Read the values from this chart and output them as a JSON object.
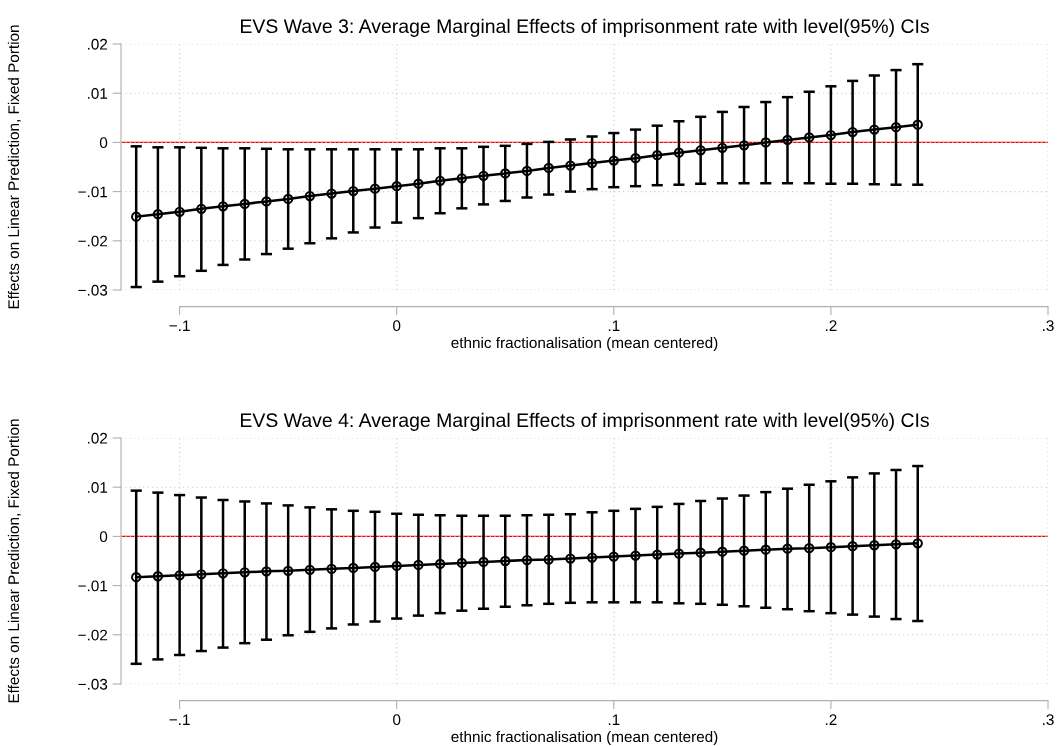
{
  "chart_data": [
    {
      "type": "line",
      "title": "EVS Wave 3: Average Marginal Effects of imprisonment rate with level(95%) CIs",
      "xlabel": "ethnic fractionalisation (mean centered)",
      "ylabel": "Effects on Linear Prediction, Fixed Portion",
      "x": [
        -0.12,
        -0.11,
        -0.1,
        -0.09,
        -0.08,
        -0.07,
        -0.06,
        -0.05,
        -0.04,
        -0.03,
        -0.02,
        -0.01,
        0,
        0.01,
        0.02,
        0.03,
        0.04,
        0.05,
        0.06,
        0.07,
        0.08,
        0.09,
        0.1,
        0.11,
        0.12,
        0.13,
        0.14,
        0.15,
        0.16,
        0.17,
        0.18,
        0.19,
        0.2,
        0.21,
        0.22,
        0.23,
        0.24
      ],
      "series": [
        {
          "color": "#000000",
          "values": [
            -0.0151,
            -0.0146,
            -0.0141,
            -0.0135,
            -0.013,
            -0.0125,
            -0.012,
            -0.0115,
            -0.0109,
            -0.0104,
            -0.0099,
            -0.0094,
            -0.0089,
            -0.0084,
            -0.0078,
            -0.0073,
            -0.0068,
            -0.0063,
            -0.0058,
            -0.0052,
            -0.0047,
            -0.0042,
            -0.0037,
            -0.0032,
            -0.0026,
            -0.0021,
            -0.0016,
            -0.0011,
            -0.0006,
            0.0,
            0.0005,
            0.001,
            0.0015,
            0.0021,
            0.0026,
            0.0031,
            0.0036
          ],
          "errors": [
            [
              -0.0294,
              -0.0008
            ],
            [
              -0.0283,
              -0.001
            ],
            [
              -0.0272,
              -0.001
            ],
            [
              -0.0261,
              -0.0011
            ],
            [
              -0.0249,
              -0.0012
            ],
            [
              -0.0238,
              -0.0012
            ],
            [
              -0.0227,
              -0.0013
            ],
            [
              -0.0216,
              -0.0014
            ],
            [
              -0.0205,
              -0.0014
            ],
            [
              -0.0195,
              -0.0014
            ],
            [
              -0.0183,
              -0.0014
            ],
            [
              -0.0173,
              -0.0014
            ],
            [
              -0.0163,
              -0.0014
            ],
            [
              -0.0154,
              -0.0014
            ],
            [
              -0.0144,
              -0.0012
            ],
            [
              -0.0134,
              -0.0012
            ],
            [
              -0.0126,
              -0.0009
            ],
            [
              -0.0119,
              -0.0007
            ],
            [
              -0.0112,
              -0.0003
            ],
            [
              -0.0106,
              0.0001
            ],
            [
              -0.01,
              0.0006
            ],
            [
              -0.0095,
              0.0012
            ],
            [
              -0.0091,
              0.0019
            ],
            [
              -0.0089,
              0.0026
            ],
            [
              -0.0087,
              0.0034
            ],
            [
              -0.0086,
              0.0043
            ],
            [
              -0.0084,
              0.0052
            ],
            [
              -0.0083,
              0.0062
            ],
            [
              -0.0083,
              0.0072
            ],
            [
              -0.0083,
              0.0082
            ],
            [
              -0.0083,
              0.0092
            ],
            [
              -0.0083,
              0.0103
            ],
            [
              -0.0084,
              0.0114
            ],
            [
              -0.0084,
              0.0125
            ],
            [
              -0.0085,
              0.0136
            ],
            [
              -0.0086,
              0.0147
            ],
            [
              -0.0086,
              0.0159
            ]
          ]
        }
      ],
      "xlim": [
        -0.127,
        0.3
      ],
      "xticks": [
        {
          "value": -0.1,
          "label": "−.1"
        },
        0,
        {
          "value": 0.1,
          "label": ".1"
        },
        {
          "value": 0.2,
          "label": ".2"
        },
        {
          "value": 0.3,
          "label": ".3"
        }
      ],
      "ylim": [
        -0.03,
        0.02
      ],
      "yticks": [
        {
          "value": -0.03,
          "label": "−.03"
        },
        {
          "value": -0.02,
          "label": "−.02"
        },
        {
          "value": -0.01,
          "label": "−.01"
        },
        0,
        {
          "value": 0.01,
          "label": ".01"
        },
        {
          "value": 0.02,
          "label": ".02"
        }
      ],
      "ref_lines": [
        {
          "axis": "y",
          "value": 0,
          "color": "#ff0000"
        }
      ],
      "grid": true,
      "marker": "circle",
      "line_style": "solid"
    },
    {
      "type": "line",
      "title": "EVS Wave 4: Average Marginal Effects of imprisonment rate with level(95%) CIs",
      "xlabel": "ethnic fractionalisation (mean centered)",
      "ylabel": "Effects on Linear Prediction, Fixed Portion",
      "x": [
        -0.12,
        -0.11,
        -0.1,
        -0.09,
        -0.08,
        -0.07,
        -0.06,
        -0.05,
        -0.04,
        -0.03,
        -0.02,
        -0.01,
        0,
        0.01,
        0.02,
        0.03,
        0.04,
        0.05,
        0.06,
        0.07,
        0.08,
        0.09,
        0.1,
        0.11,
        0.12,
        0.13,
        0.14,
        0.15,
        0.16,
        0.17,
        0.18,
        0.19,
        0.2,
        0.21,
        0.22,
        0.23,
        0.24
      ],
      "series": [
        {
          "color": "#000000",
          "values": [
            -0.0083,
            -0.0081,
            -0.0079,
            -0.0077,
            -0.0075,
            -0.0073,
            -0.0071,
            -0.007,
            -0.0068,
            -0.0066,
            -0.0064,
            -0.0062,
            -0.006,
            -0.0058,
            -0.0056,
            -0.0054,
            -0.0052,
            -0.005,
            -0.0048,
            -0.0047,
            -0.0045,
            -0.0043,
            -0.0041,
            -0.0039,
            -0.0037,
            -0.0035,
            -0.0033,
            -0.0031,
            -0.0029,
            -0.0027,
            -0.0025,
            -0.0024,
            -0.0022,
            -0.002,
            -0.0018,
            -0.0016,
            -0.0014
          ],
          "errors": [
            [
              -0.0259,
              0.0093
            ],
            [
              -0.025,
              0.0089
            ],
            [
              -0.0241,
              0.0084
            ],
            [
              -0.0233,
              0.0079
            ],
            [
              -0.0226,
              0.0074
            ],
            [
              -0.0217,
              0.0071
            ],
            [
              -0.021,
              0.0067
            ],
            [
              -0.0201,
              0.0063
            ],
            [
              -0.0194,
              0.0059
            ],
            [
              -0.0187,
              0.0055
            ],
            [
              -0.0179,
              0.0052
            ],
            [
              -0.0173,
              0.005
            ],
            [
              -0.0167,
              0.0046
            ],
            [
              -0.0161,
              0.0044
            ],
            [
              -0.0156,
              0.0043
            ],
            [
              -0.0151,
              0.0042
            ],
            [
              -0.0147,
              0.0042
            ],
            [
              -0.0143,
              0.0042
            ],
            [
              -0.014,
              0.0043
            ],
            [
              -0.0137,
              0.0044
            ],
            [
              -0.0135,
              0.0045
            ],
            [
              -0.0134,
              0.0049
            ],
            [
              -0.0134,
              0.0052
            ],
            [
              -0.0134,
              0.0056
            ],
            [
              -0.0134,
              0.006
            ],
            [
              -0.0136,
              0.0066
            ],
            [
              -0.0137,
              0.0072
            ],
            [
              -0.0139,
              0.0077
            ],
            [
              -0.0142,
              0.0083
            ],
            [
              -0.0145,
              0.009
            ],
            [
              -0.0148,
              0.0097
            ],
            [
              -0.0152,
              0.0105
            ],
            [
              -0.0156,
              0.0112
            ],
            [
              -0.0159,
              0.012
            ],
            [
              -0.0163,
              0.0128
            ],
            [
              -0.0168,
              0.0135
            ],
            [
              -0.0172,
              0.0143
            ]
          ]
        }
      ],
      "xlim": [
        -0.127,
        0.3
      ],
      "xticks": [
        {
          "value": -0.1,
          "label": "−.1"
        },
        0,
        {
          "value": 0.1,
          "label": ".1"
        },
        {
          "value": 0.2,
          "label": ".2"
        },
        {
          "value": 0.3,
          "label": ".3"
        }
      ],
      "ylim": [
        -0.03,
        0.02
      ],
      "yticks": [
        {
          "value": -0.03,
          "label": "−.03"
        },
        {
          "value": -0.02,
          "label": "−.02"
        },
        {
          "value": -0.01,
          "label": "−.01"
        },
        0,
        {
          "value": 0.01,
          "label": ".01"
        },
        {
          "value": 0.02,
          "label": ".02"
        }
      ],
      "ref_lines": [
        {
          "axis": "y",
          "value": 0,
          "color": "#ff0000"
        }
      ],
      "grid": true,
      "marker": "circle",
      "line_style": "solid"
    }
  ]
}
